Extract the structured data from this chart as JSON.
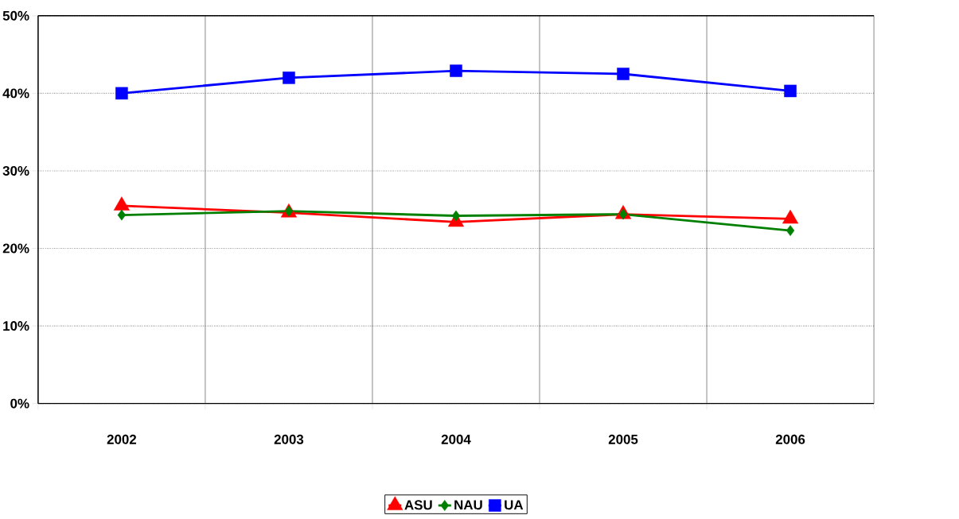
{
  "chart_data": {
    "type": "line",
    "categories": [
      "2002",
      "2003",
      "2004",
      "2005",
      "2006"
    ],
    "series": [
      {
        "name": "ASU",
        "color": "#ff0000",
        "marker": "triangle",
        "values": [
          25.5,
          24.6,
          23.4,
          24.4,
          23.8
        ]
      },
      {
        "name": "NAU",
        "color": "#008000",
        "marker": "diamond",
        "values": [
          24.3,
          24.8,
          24.2,
          24.4,
          22.3
        ]
      },
      {
        "name": "UA",
        "color": "#0000ff",
        "marker": "square",
        "values": [
          40.0,
          42.0,
          42.9,
          42.5,
          40.3
        ]
      }
    ],
    "ylim": [
      0,
      50
    ],
    "yticks": [
      {
        "value": 0,
        "label": "0%"
      },
      {
        "value": 10,
        "label": "10%"
      },
      {
        "value": 20,
        "label": "20%"
      },
      {
        "value": 30,
        "label": "30%"
      },
      {
        "value": 40,
        "label": "40%"
      },
      {
        "value": 50,
        "label": "50%"
      }
    ],
    "grid": true,
    "legend": "bottom"
  }
}
